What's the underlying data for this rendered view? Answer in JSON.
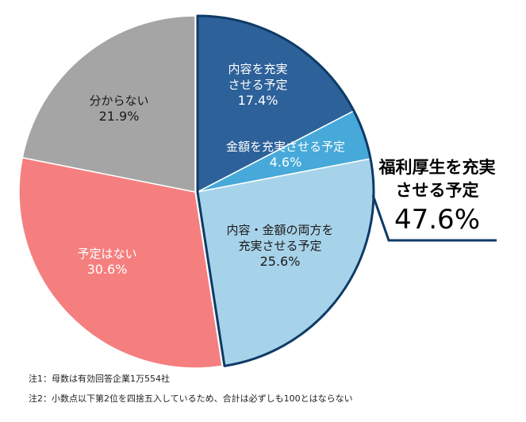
{
  "chart_data": {
    "type": "pie",
    "start_angle": "top",
    "direction": "clockwise",
    "slices": [
      {
        "label_lines": [
          "内容を充実",
          "させる予定"
        ],
        "value": 17.4,
        "display": "17.4%",
        "color": "#2d6199",
        "text_color": "#ffffff",
        "group": true
      },
      {
        "label_lines": [
          "金額を充実させる予定"
        ],
        "value": 4.6,
        "display": "4.6%",
        "color": "#46a9d9",
        "text_color": "#ffffff",
        "group": true
      },
      {
        "label_lines": [
          "内容・金額の両方を",
          "充実させる予定"
        ],
        "value": 25.6,
        "display": "25.6%",
        "color": "#a7d3ea",
        "text_color": "#1a1a1a",
        "group": true
      },
      {
        "label_lines": [
          "予定はない"
        ],
        "value": 30.6,
        "display": "30.6%",
        "color": "#f57f7f",
        "text_color": "#ffffff",
        "group": false
      },
      {
        "label_lines": [
          "分からない"
        ],
        "value": 21.9,
        "display": "21.9%",
        "color": "#a5a5a5",
        "text_color": "#1a1a1a",
        "group": false
      }
    ],
    "group_callout": {
      "label_lines": [
        "福利厚生を充実",
        "させる予定"
      ],
      "value": 47.6,
      "display": "47.6%",
      "outline_color": "#0e3a66"
    },
    "notes": [
      "注1：母数は有効回答企業1万554社",
      "注2：小数点以下第2位を四捨五入しているため、合計は必ずしも100とはならない"
    ]
  }
}
